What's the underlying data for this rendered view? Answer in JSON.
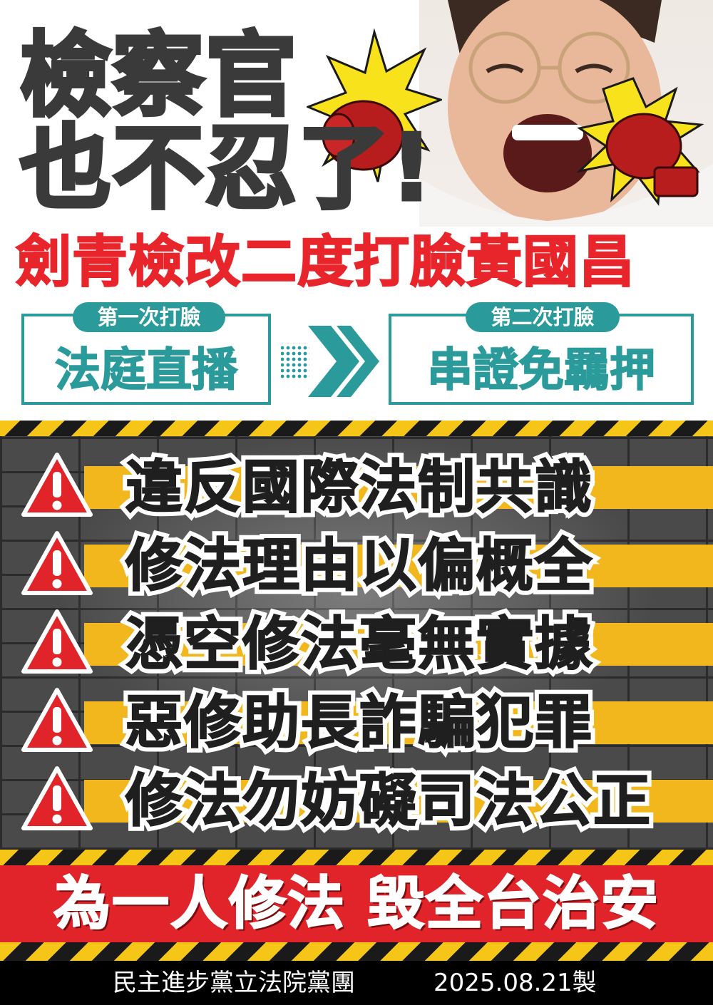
{
  "headline": {
    "line1": "檢察官",
    "line2": "也不忍了!",
    "subtitle": "劍青檢改二度打臉黃國昌"
  },
  "steps": [
    {
      "tag": "第一次打臉",
      "main": "法庭直播"
    },
    {
      "tag": "第二次打臉",
      "main": "串證免羈押"
    }
  ],
  "warnings": [
    "違反國際法制共識",
    "修法理由以偏概全",
    "憑空修法毫無實據",
    "惡修助長詐騙犯罪",
    "修法勿妨礙司法公正"
  ],
  "banner": "為一人修法 毀全台治安",
  "footer": {
    "org": "民主進步黨立法院黨團",
    "date": "2025.08.21製"
  },
  "colors": {
    "title": "#3a3a3a",
    "accent_red": "#e8252b",
    "teal": "#2a9a9a",
    "warning_yellow": "#f2b71c",
    "banner_red": "#e0242a"
  }
}
